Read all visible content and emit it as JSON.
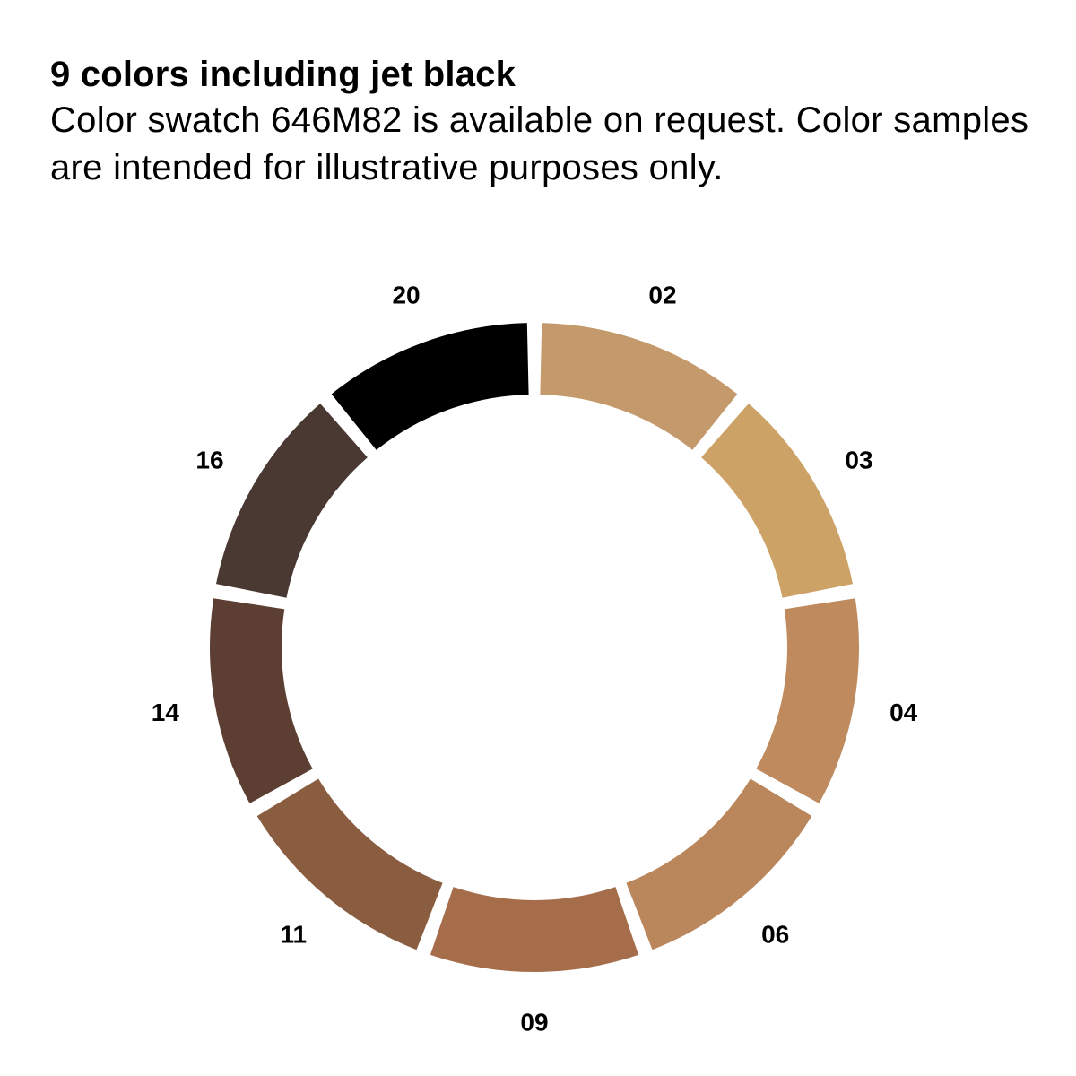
{
  "header": {
    "title": "9 colors including jet black",
    "description": "Color swatch 646M82 is available on request. Color samples are intended for illustrative purposes only."
  },
  "swatches": [
    {
      "code": "02",
      "color": "#C49A6C"
    },
    {
      "code": "03",
      "color": "#CCA266"
    },
    {
      "code": "04",
      "color": "#BF8B5E"
    },
    {
      "code": "06",
      "color": "#BA875C"
    },
    {
      "code": "09",
      "color": "#A66D4A"
    },
    {
      "code": "11",
      "color": "#8A5D41"
    },
    {
      "code": "14",
      "color": "#5C3F32"
    },
    {
      "code": "16",
      "color": "#4A3932"
    },
    {
      "code": "20",
      "color": "#000000"
    }
  ]
}
